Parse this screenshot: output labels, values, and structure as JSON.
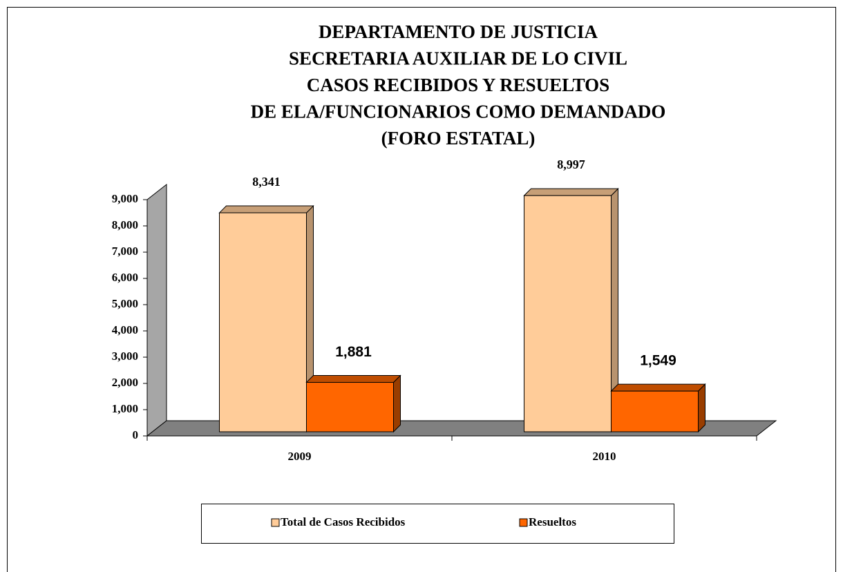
{
  "chart_data": {
    "type": "bar3d",
    "title": [
      "DEPARTAMENTO DE JUSTICIA",
      "SECRETARIA AUXILIAR DE LO CIVIL",
      "CASOS RECIBIDOS Y RESUELTOS",
      "DE ELA/FUNCIONARIOS COMO DEMANDADO",
      "(FORO ESTATAL)"
    ],
    "categories": [
      "2009",
      "2010"
    ],
    "series": [
      {
        "name": "Total de Casos Recibidos",
        "color": "#ffcc99",
        "values": [
          8341,
          8997
        ],
        "value_labels": [
          "8,341",
          "8,997"
        ]
      },
      {
        "name": "Resueltos",
        "color": "#ff6600",
        "values": [
          1881,
          1549
        ],
        "value_labels": [
          "1,881",
          "1,549"
        ]
      }
    ],
    "ylim": [
      0,
      9000
    ],
    "yticks": [
      0,
      {
        "value": 1000,
        "label": "1,000"
      },
      {
        "value": 2000,
        "label": "2,000"
      },
      {
        "value": 3000,
        "label": "3,000"
      },
      {
        "value": 4000,
        "label": "4,000"
      },
      {
        "value": 5000,
        "label": "5,000"
      },
      {
        "value": 6000,
        "label": "6,000"
      },
      {
        "value": 7000,
        "label": "7,000"
      },
      {
        "value": 8000,
        "label": "8,000"
      },
      {
        "value": 9000,
        "label": "9,000"
      }
    ],
    "legend": "bottom"
  }
}
